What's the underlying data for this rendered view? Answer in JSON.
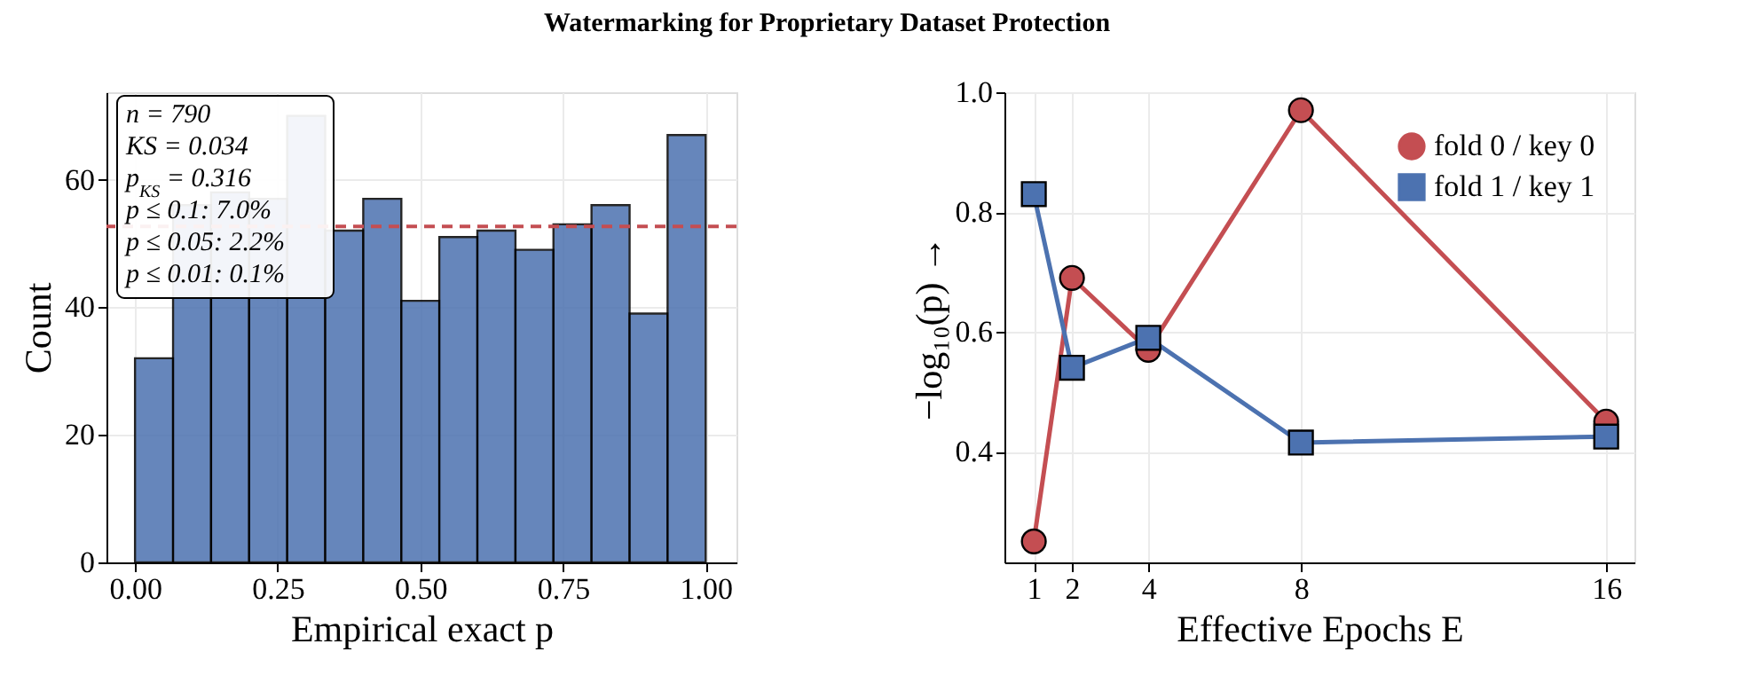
{
  "chart_data": [
    {
      "type": "histogram",
      "title": "Watermarking for Proprietary Dataset Protection",
      "xlabel": "Empirical exact p",
      "ylabel": "Count",
      "bins": [
        0,
        0.0667,
        0.1333,
        0.2,
        0.2667,
        0.3333,
        0.4,
        0.4667,
        0.5333,
        0.6,
        0.6667,
        0.7333,
        0.8,
        0.8667,
        0.9333,
        1
      ],
      "values": [
        32,
        56,
        58,
        57,
        70,
        52,
        57,
        41,
        51,
        52,
        49,
        53,
        56,
        39,
        67
      ],
      "color": "#4c72b0",
      "xlim": [
        -0.05,
        1.054
      ],
      "xticks": [
        {
          "value": 0,
          "label": "0.00"
        },
        {
          "value": 0.25,
          "label": "0.25"
        },
        {
          "value": 0.5,
          "label": "0.50"
        },
        {
          "value": 0.75,
          "label": "0.75"
        },
        {
          "value": 1,
          "label": "1.00"
        }
      ],
      "ylim": [
        0,
        73.7
      ],
      "yticks": [
        0,
        20,
        40,
        60
      ],
      "grid": true,
      "ref_lines": [
        {
          "axis": "y",
          "value": 52.67,
          "color": "#c44e52",
          "line_style": "dashed"
        }
      ],
      "annotations": [
        "n = 790",
        "KS = 0.034",
        "p$_{KS}$ = 0.316",
        "p ≤ 0.1: 7.0%",
        "p ≤ 0.05: 2.2%",
        "p ≤ 0.01: 0.1%"
      ]
    },
    {
      "type": "line",
      "xlabel": "Effective Epochs E",
      "ylabel": "−log₁₀(p) →",
      "x": [
        1,
        2,
        4,
        8,
        16
      ],
      "series": [
        {
          "name": "fold 0 / key 0",
          "color": "#c44e52",
          "marker": "circle",
          "values": [
            0.25,
            0.69,
            0.57,
            0.97,
            0.45
          ]
        },
        {
          "name": "fold 1 / key 1",
          "color": "#4c72b0",
          "marker": "square",
          "values": [
            0.83,
            0.54,
            0.59,
            0.415,
            0.425
          ]
        }
      ],
      "xlim": [
        0.23,
        16.74
      ],
      "xticks": [
        1,
        2,
        4,
        8,
        16
      ],
      "ylim": [
        0.215,
        1.0
      ],
      "yticks": [
        {
          "value": 0.4,
          "label": "0.4"
        },
        {
          "value": 0.6,
          "label": "0.6"
        },
        {
          "value": 0.8,
          "label": "0.8"
        },
        {
          "value": 1.0,
          "label": "1.0"
        }
      ],
      "grid": true,
      "legend": "top right",
      "line_style": "solid"
    }
  ]
}
